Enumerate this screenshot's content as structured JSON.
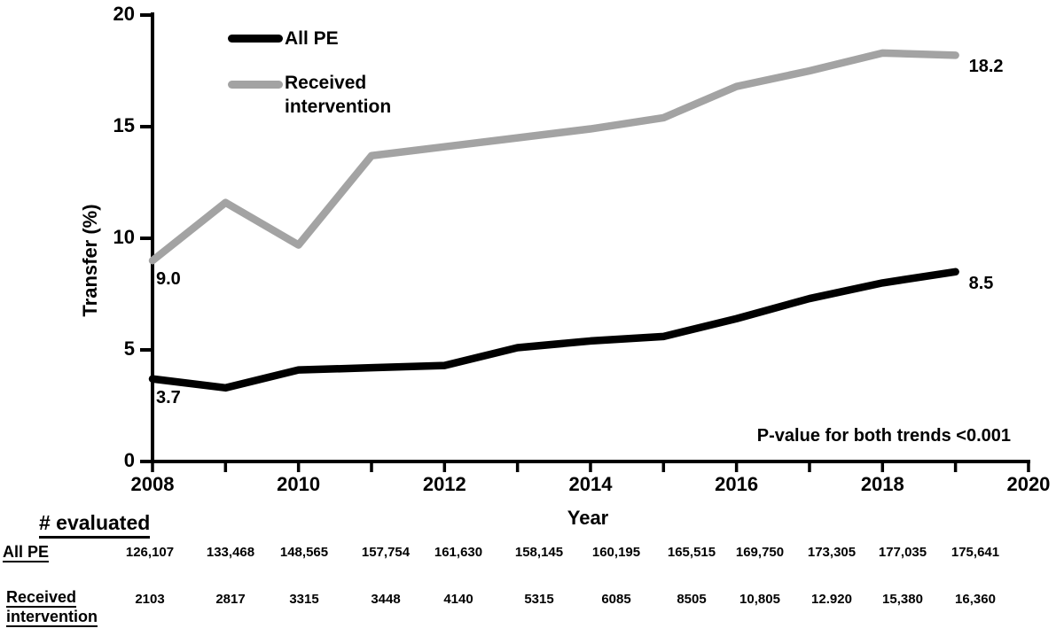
{
  "chart_data": {
    "type": "line",
    "title": "",
    "xlabel": "Year",
    "ylabel": "Transfer (%)",
    "xlim": [
      2008,
      2020
    ],
    "ylim": [
      0,
      20
    ],
    "y_ticks": [
      0,
      5,
      10,
      15,
      20
    ],
    "x_tick_labels": [
      2008,
      2010,
      2012,
      2014,
      2016,
      2018,
      2020
    ],
    "x_minor_ticks": [
      2009,
      2011,
      2013,
      2015,
      2017,
      2019,
      2020
    ],
    "grid": false,
    "legend_position": "inside-top-left",
    "years": [
      2008,
      2009,
      2010,
      2011,
      2012,
      2013,
      2014,
      2015,
      2016,
      2017,
      2018,
      2019
    ],
    "series": [
      {
        "name": "All PE",
        "color": "#000000",
        "values": [
          3.7,
          3.3,
          4.1,
          4.2,
          4.3,
          5.1,
          5.4,
          5.6,
          6.4,
          7.3,
          8.0,
          8.5
        ]
      },
      {
        "name": "Received intervention",
        "color": "#a3a3a3",
        "values": [
          9.0,
          11.6,
          9.7,
          13.7,
          14.1,
          14.5,
          14.9,
          15.4,
          16.8,
          17.5,
          18.3,
          18.2
        ]
      }
    ],
    "point_labels": [
      {
        "text": "9.0",
        "year": 2008,
        "value": 9.0,
        "anchor": "below"
      },
      {
        "text": "3.7",
        "year": 2008,
        "value": 3.7,
        "anchor": "below"
      },
      {
        "text": "18.2",
        "year": 2019,
        "value": 18.2,
        "anchor": "right"
      },
      {
        "text": "8.5",
        "year": 2019,
        "value": 8.5,
        "anchor": "right"
      }
    ],
    "annotation": "P-value for both trends <0.001",
    "legend": [
      {
        "label": "All PE",
        "color": "#000000"
      },
      {
        "label": "Received\nintervention",
        "color": "#a3a3a3"
      }
    ]
  },
  "table": {
    "header": "# evaluated",
    "rows": [
      {
        "label": "All PE",
        "values": [
          "126,107",
          "133,468",
          "148,565",
          "157,754",
          "161,630",
          "158,145",
          "160,195",
          "165,515",
          "169,750",
          "173,305",
          "177,035",
          "175,641"
        ]
      },
      {
        "label": "Received intervention",
        "label_lines": [
          "Received",
          "intervention"
        ],
        "values": [
          "2103",
          "2817",
          "3315",
          "3448",
          "4140",
          "5315",
          "6085",
          "8505",
          "10,805",
          "12.920",
          "15,380",
          "16,360"
        ]
      }
    ]
  }
}
